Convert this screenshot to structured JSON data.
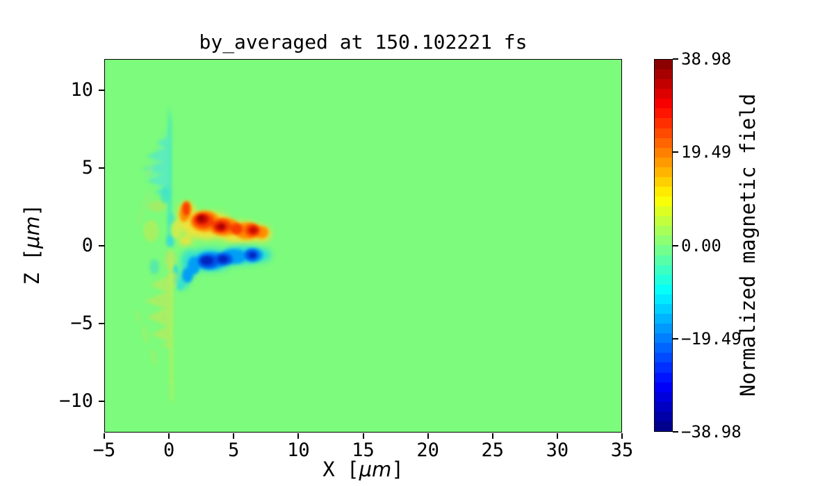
{
  "figure_title": "by_averaged at 150.102221 fs",
  "axes": {
    "x_label": {
      "pre": "X [",
      "unit": "μm",
      "post": "]"
    },
    "z_label": {
      "pre": "Z [",
      "unit": "μm",
      "post": "]"
    },
    "x_tick_labels": [
      "−5",
      "0",
      "5",
      "10",
      "15",
      "20",
      "25",
      "30",
      "35"
    ],
    "z_tick_labels": [
      "10",
      "5",
      "0",
      "−5",
      "−10"
    ]
  },
  "colorbar": {
    "label": "Normalized magnetic field",
    "vmin": -38.98,
    "vmax": 38.98,
    "bands": 38,
    "tick_values": [
      38.98,
      19.49,
      0.0,
      -19.49,
      -38.98
    ],
    "tick_labels": [
      "38.98",
      "19.49",
      "0.00",
      "−19.49",
      "−38.98"
    ]
  },
  "chart_data": {
    "type": "heatmap",
    "title": "by_averaged at 150.102221 fs",
    "xlabel": "X [μm]",
    "ylabel": "Z [μm]",
    "colorbar_label": "Normalized magnetic field",
    "colormap": "jet",
    "vmin": -38.98,
    "vmax": 38.98,
    "x_range_um": [
      -5,
      35
    ],
    "z_range_um": [
      -12,
      12
    ],
    "x_ticks": [
      -5,
      0,
      5,
      10,
      15,
      20,
      25,
      30,
      35
    ],
    "z_ticks": [
      10,
      5,
      0,
      -5,
      -10
    ],
    "background_value": 0.0,
    "background_color": "#7CFB7C",
    "grid": false,
    "features": [
      {
        "name": "positive-field-lobe",
        "sign": "+",
        "peak_value": 39,
        "x_um": [
          0.8,
          7.8
        ],
        "z_um": [
          0.1,
          2.8
        ],
        "description": "clumpy orange/red lobe above z=0, dark-red cores near x=2.6, 4.0, 6.0 um, tapering to a tip at x≈7.8 um"
      },
      {
        "name": "negative-field-lobe",
        "sign": "-",
        "peak_value": -39,
        "x_um": [
          0.8,
          7.8
        ],
        "z_um": [
          -2.8,
          -0.1
        ],
        "description": "clumpy blue lobe below z=0, navy cores near x=2.8, 4.1, 6.0 um, cyan fringe, tapering to a tip at x≈7.8 um"
      },
      {
        "name": "target-surface-plume",
        "sign": "±",
        "peak_value": 5,
        "x_um": [
          -2.7,
          0.4
        ],
        "z_um": [
          -9,
          8.8
        ],
        "description": "feathered weak vertical plume along x≈0: teal/cyan ripples above z≈0, yellow-green ripples below, leftward-pointing spikes"
      }
    ]
  },
  "palette": {
    "zero_green": "#7CFB7C",
    "dark_red_max": "#7F0000",
    "navy_min": "#00007F",
    "teal_weak_negative": "#44E9BD",
    "yellow_green_weak_positive": "#BEEF58"
  }
}
